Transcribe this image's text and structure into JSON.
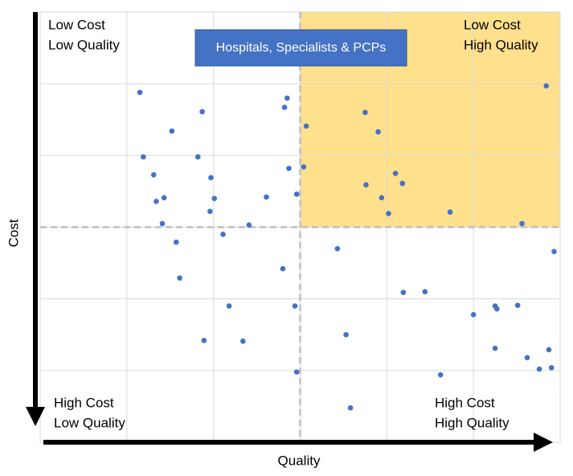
{
  "chart_data": {
    "type": "scatter",
    "title": "Hospitals, Specialists & PCPs",
    "xlabel": "Quality",
    "ylabel": "Cost",
    "quadrant_labels": {
      "top_left": [
        "Low Cost",
        "Low Quality"
      ],
      "top_right": [
        "Low Cost",
        "High Quality"
      ],
      "bottom_left": [
        "High Cost",
        "Low Quality"
      ],
      "bottom_right": [
        "High Cost",
        "High Quality"
      ]
    },
    "x": [
      1.15,
      1.87,
      2.85,
      2.82,
      1.52,
      3.07,
      3.75,
      3.9,
      1.19,
      1.82,
      2.87,
      3.04,
      1.31,
      1.97,
      4.1,
      4.18,
      3.76,
      1.43,
      2.01,
      2.61,
      2.96,
      3.94,
      1.34,
      4.02,
      4.73,
      1.96,
      1.41,
      2.41,
      2.11,
      5.56,
      5.84,
      1.57,
      3.43,
      5.93,
      1.61,
      2.8,
      4.19,
      4.44,
      2.18,
      2.94,
      5.0,
      5.25,
      5.27,
      5.51,
      1.89,
      2.34,
      3.53,
      5.25,
      5.62,
      5.87,
      5.76,
      5.9,
      2.96,
      4.62,
      3.58
    ],
    "values": [
      1.12,
      1.39,
      1.2,
      1.33,
      1.66,
      1.59,
      1.4,
      1.67,
      2.02,
      2.02,
      2.18,
      2.16,
      2.27,
      2.31,
      2.25,
      2.39,
      2.41,
      2.59,
      2.6,
      2.58,
      2.54,
      2.59,
      2.64,
      2.81,
      2.79,
      2.78,
      2.95,
      2.97,
      3.1,
      2.95,
      1.03,
      3.21,
      3.3,
      3.34,
      3.71,
      3.58,
      3.91,
      3.9,
      4.1,
      4.1,
      4.22,
      4.1,
      4.14,
      4.09,
      4.58,
      4.59,
      4.5,
      4.69,
      4.82,
      4.71,
      4.98,
      4.96,
      5.02,
      5.06,
      5.52
    ],
    "color": "#4472c4",
    "xlim": [
      0,
      6
    ],
    "ylim": [
      6,
      0
    ],
    "xticks": [
      1,
      2,
      3,
      4,
      5
    ],
    "yticks": [
      1,
      2,
      3,
      4,
      5
    ],
    "grid": true,
    "dividers": {
      "x": 3,
      "y": 3
    },
    "highlight_quadrant": "top-right",
    "highlight_color": "#ffe08c"
  }
}
